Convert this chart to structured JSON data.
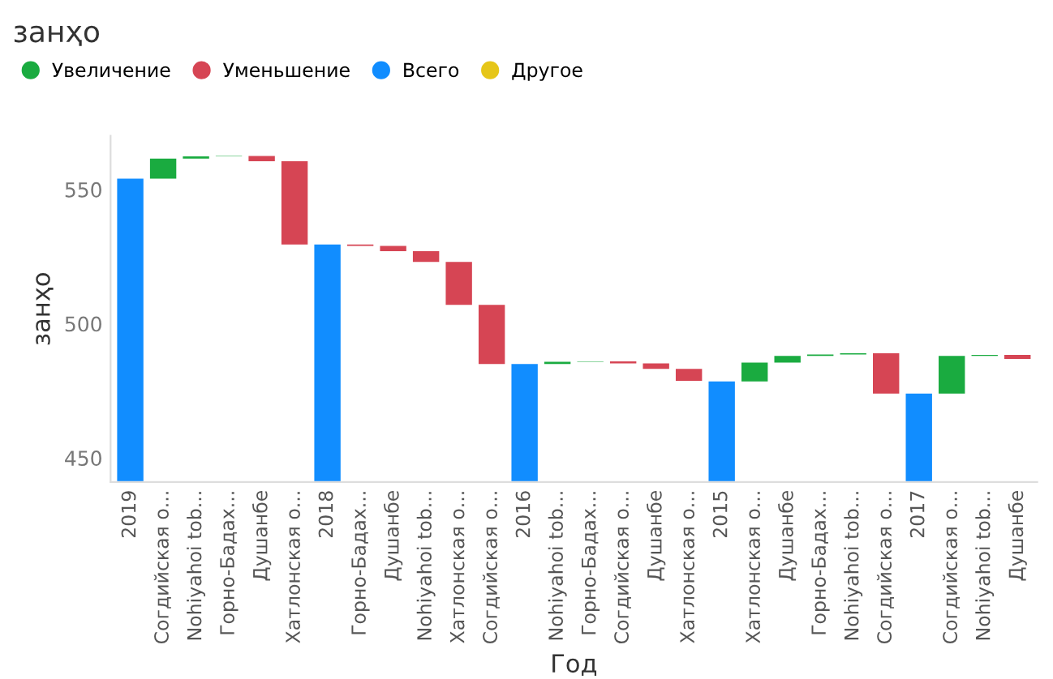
{
  "chart_data": {
    "type": "bar",
    "title": "занҳо",
    "xlabel": "Год",
    "ylabel": "занҳо",
    "categories": [
      "2019",
      "Согдийская о...",
      "Nohiyahoi tob...",
      "Горно-Бадах...",
      "Душанбе",
      "Хатлонская о...",
      "2018",
      "Горно-Бадах...",
      "Душанбе",
      "Nohiyahoi tob...",
      "Хатлонская о...",
      "Согдийская о...",
      "2016",
      "Nohiyahoi tob...",
      "Горно-Бадах...",
      "Согдийская о...",
      "Душанбе",
      "Хатлонская о...",
      "2015",
      "Хатлонская о...",
      "Душанбе",
      "Горно-Бадах...",
      "Nohiyahoi tob...",
      "Согдийская о...",
      "2017",
      "Согдийская о...",
      "Nohiyahoi tob...",
      "Душанбе"
    ],
    "series": [
      {
        "name": "Увеличение",
        "color": "#1aab40",
        "values": [
          null,
          7.5,
          0.8,
          0.2,
          null,
          null,
          null,
          null,
          null,
          null,
          null,
          null,
          null,
          0.8,
          0.2,
          null,
          null,
          null,
          null,
          7,
          2.5,
          0.5,
          0.5,
          null,
          null,
          14,
          0.4,
          null
        ],
        "base": [
          null,
          554,
          561.5,
          562.3,
          null,
          null,
          null,
          null,
          null,
          null,
          null,
          null,
          null,
          485,
          485.8,
          null,
          null,
          null,
          null,
          478.5,
          485.5,
          488,
          488.5,
          null,
          null,
          474,
          488,
          null
        ]
      },
      {
        "name": "Уменьшение",
        "color": "#d64554",
        "values": [
          null,
          null,
          null,
          null,
          -2,
          -31,
          null,
          -0.5,
          -2,
          -4,
          -16,
          -22,
          null,
          null,
          null,
          -0.8,
          -2,
          -4.5,
          null,
          null,
          null,
          null,
          null,
          -15,
          null,
          null,
          null,
          -1.5
        ],
        "base": [
          null,
          null,
          null,
          null,
          562.5,
          560.5,
          null,
          529.5,
          529,
          527,
          523,
          507,
          null,
          null,
          null,
          486,
          485.2,
          483.2,
          null,
          null,
          null,
          null,
          null,
          489,
          null,
          null,
          null,
          488.4
        ]
      },
      {
        "name": "Всего",
        "color": "#118dff",
        "values": [
          554,
          null,
          null,
          null,
          null,
          null,
          529.5,
          null,
          null,
          null,
          null,
          null,
          485,
          null,
          null,
          null,
          null,
          null,
          478.5,
          null,
          null,
          null,
          null,
          null,
          474,
          null,
          null,
          null
        ]
      },
      {
        "name": "Другое",
        "color": "#e6c619",
        "values": [
          null,
          null,
          null,
          null,
          null,
          null,
          null,
          null,
          null,
          null,
          null,
          null,
          null,
          null,
          null,
          null,
          null,
          null,
          null,
          null,
          null,
          null,
          null,
          null,
          null,
          null,
          null,
          null
        ]
      }
    ],
    "ylim": [
      441,
      570
    ],
    "yticks": [
      450,
      500,
      550
    ],
    "legend": "top left",
    "grid": false
  }
}
